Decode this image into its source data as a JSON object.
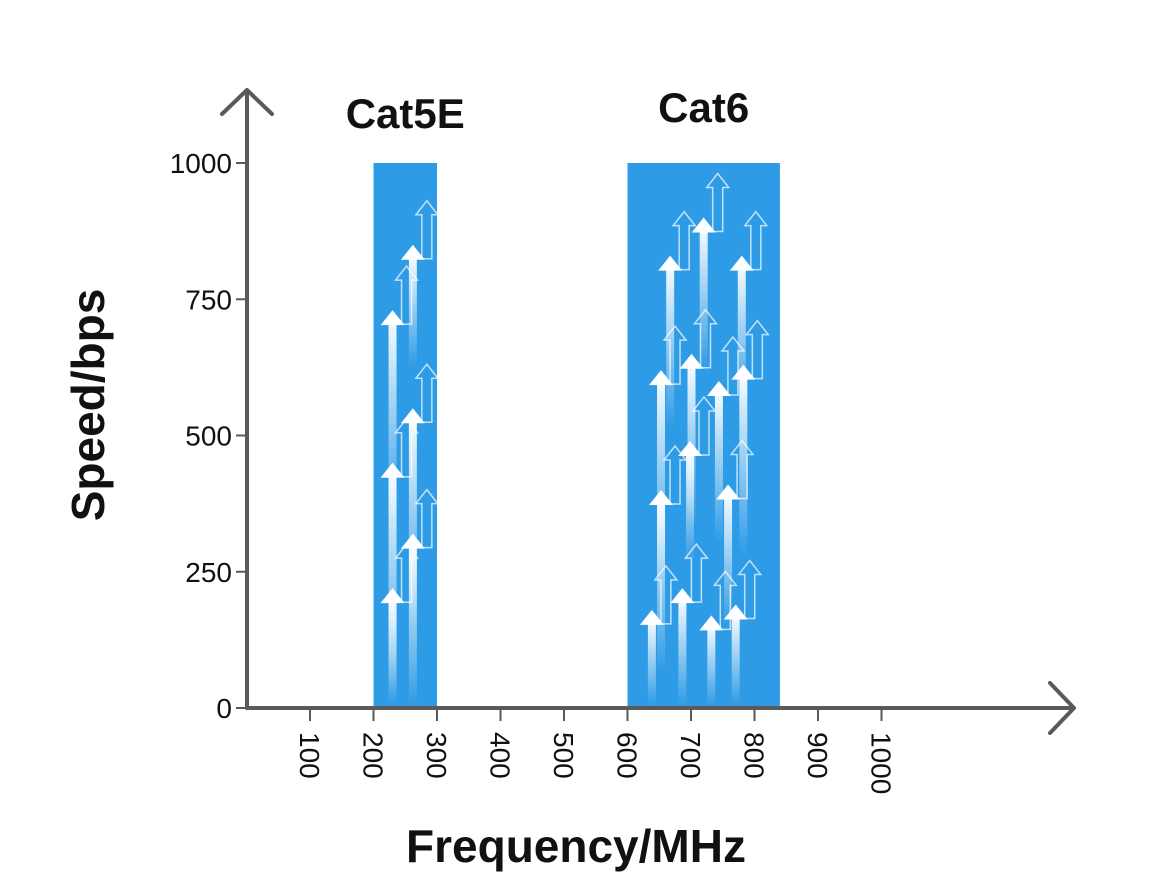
{
  "chart_data": {
    "type": "bar",
    "xlabel": "Frequency/MHz",
    "ylabel": "Speed/bps",
    "x_ticks": [
      100,
      200,
      300,
      400,
      500,
      600,
      700,
      800,
      900,
      1000
    ],
    "y_ticks": [
      0,
      250,
      500,
      750,
      1000
    ],
    "y_tick_labels": [
      "0",
      "250",
      "500",
      "750",
      "1000"
    ],
    "xlim": [
      0,
      1000
    ],
    "ylim": [
      0,
      1000
    ],
    "grid": false,
    "legend": "none",
    "series": [
      {
        "name": "Cat5E",
        "x_start": 200,
        "x_end": 300,
        "value": 1000,
        "color": "#2e9be6"
      },
      {
        "name": "Cat6",
        "x_start": 600,
        "x_end": 840,
        "value": 1000,
        "color": "#2e9be6"
      }
    ],
    "decoration": {
      "arrow_icon": "upward-arrow-icon",
      "arrow_color": "#ffffff"
    }
  }
}
